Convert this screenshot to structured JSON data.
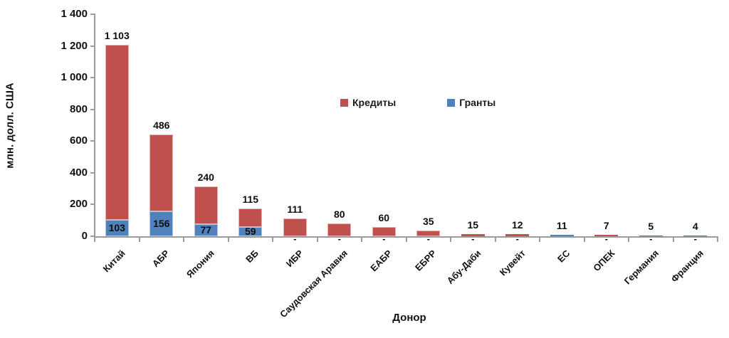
{
  "chart_data": {
    "type": "bar",
    "stacked": true,
    "title": "",
    "xlabel": "Донор",
    "ylabel": "млн. долл. США",
    "ylim": [
      0,
      1400
    ],
    "ytick_step": 200,
    "ytick_labels": [
      "0",
      "200",
      "400",
      "600",
      "800",
      "1 000",
      "1 200",
      "1 400"
    ],
    "grid": false,
    "legend_position": "inside-upper-middle",
    "categories": [
      "Китай",
      "АБР",
      "Япония",
      "ВБ",
      "ИБР",
      "Саудовская Аравия",
      "ЕАБР",
      "ЕБРР",
      "Абу-Даби",
      "Кувейт",
      "ЕС",
      "ОПЕК",
      "Германия",
      "Франция"
    ],
    "series": [
      {
        "name": "Кредиты",
        "color": "#c0504d",
        "values": [
          1103,
          486,
          240,
          115,
          111,
          80,
          60,
          35,
          15,
          12,
          0,
          7,
          5,
          4
        ]
      },
      {
        "name": "Гранты",
        "color": "#4f81bd",
        "values": [
          103,
          156,
          77,
          59,
          0,
          0,
          0,
          0,
          0,
          0,
          11,
          0,
          0,
          0
        ]
      }
    ],
    "bar_top_labels": [
      "1 103",
      "486",
      "240",
      "115",
      "111",
      "80",
      "60",
      "35",
      "15",
      "12",
      "11",
      "7",
      "5",
      "4"
    ],
    "grants_inside_labels": [
      "103",
      "156",
      "77",
      "59",
      "",
      "",
      "",
      "",
      "",
      "",
      "",
      "",
      "",
      ""
    ],
    "zero_value_label": "-",
    "colors": {
      "credits": "#c0504d",
      "grants": "#4f81bd",
      "axis": "#9b9b9b",
      "text": "#111111"
    }
  }
}
